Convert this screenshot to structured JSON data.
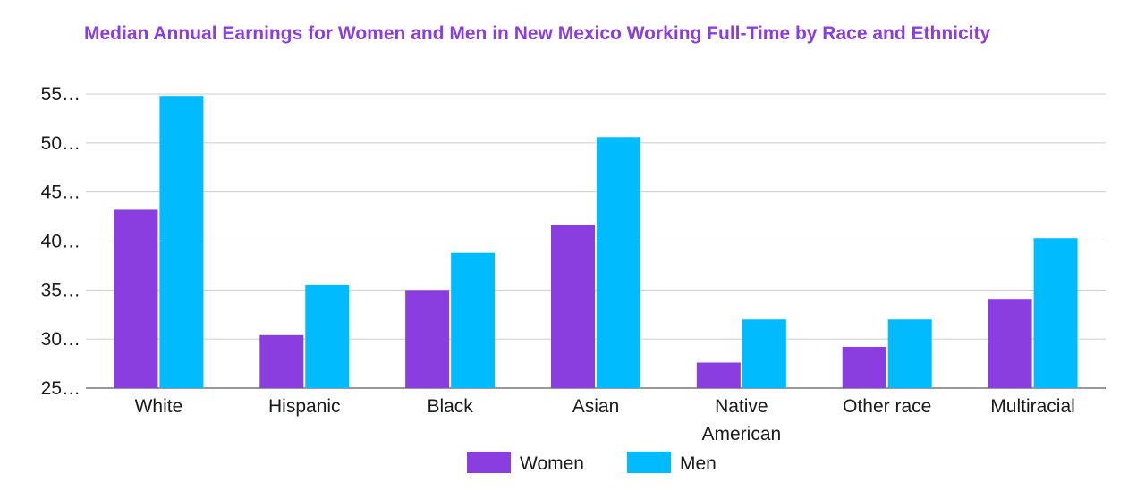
{
  "chart_data": {
    "type": "bar",
    "title": "Median Annual Earnings for Women and Men in New Mexico Working Full-Time by Race and Ethnicity",
    "categories": [
      "White",
      "Hispanic",
      "Black",
      "Asian",
      "Native American",
      "Other race",
      "Multiracial"
    ],
    "category_label_lines": [
      [
        "White"
      ],
      [
        "Hispanic"
      ],
      [
        "Black"
      ],
      [
        "Asian"
      ],
      [
        "Native",
        "American"
      ],
      [
        "Other race"
      ],
      [
        "Multiracial"
      ]
    ],
    "series": [
      {
        "name": "Women",
        "color": "#8a3ee0",
        "values": [
          43.2,
          30.4,
          35.0,
          41.6,
          27.6,
          29.2,
          34.1
        ]
      },
      {
        "name": "Men",
        "color": "#00bcff",
        "values": [
          54.8,
          35.5,
          38.8,
          50.6,
          32.0,
          32.0,
          40.3
        ]
      }
    ],
    "y_ticks": [
      25,
      30,
      35,
      40,
      45,
      50,
      55
    ],
    "y_tick_labels": [
      "25…",
      "30…",
      "35…",
      "40…",
      "45…",
      "50…",
      "55…"
    ],
    "ylim": [
      25,
      55
    ],
    "xlabel": "",
    "ylabel": "",
    "grid": true,
    "legend_position": "bottom"
  }
}
